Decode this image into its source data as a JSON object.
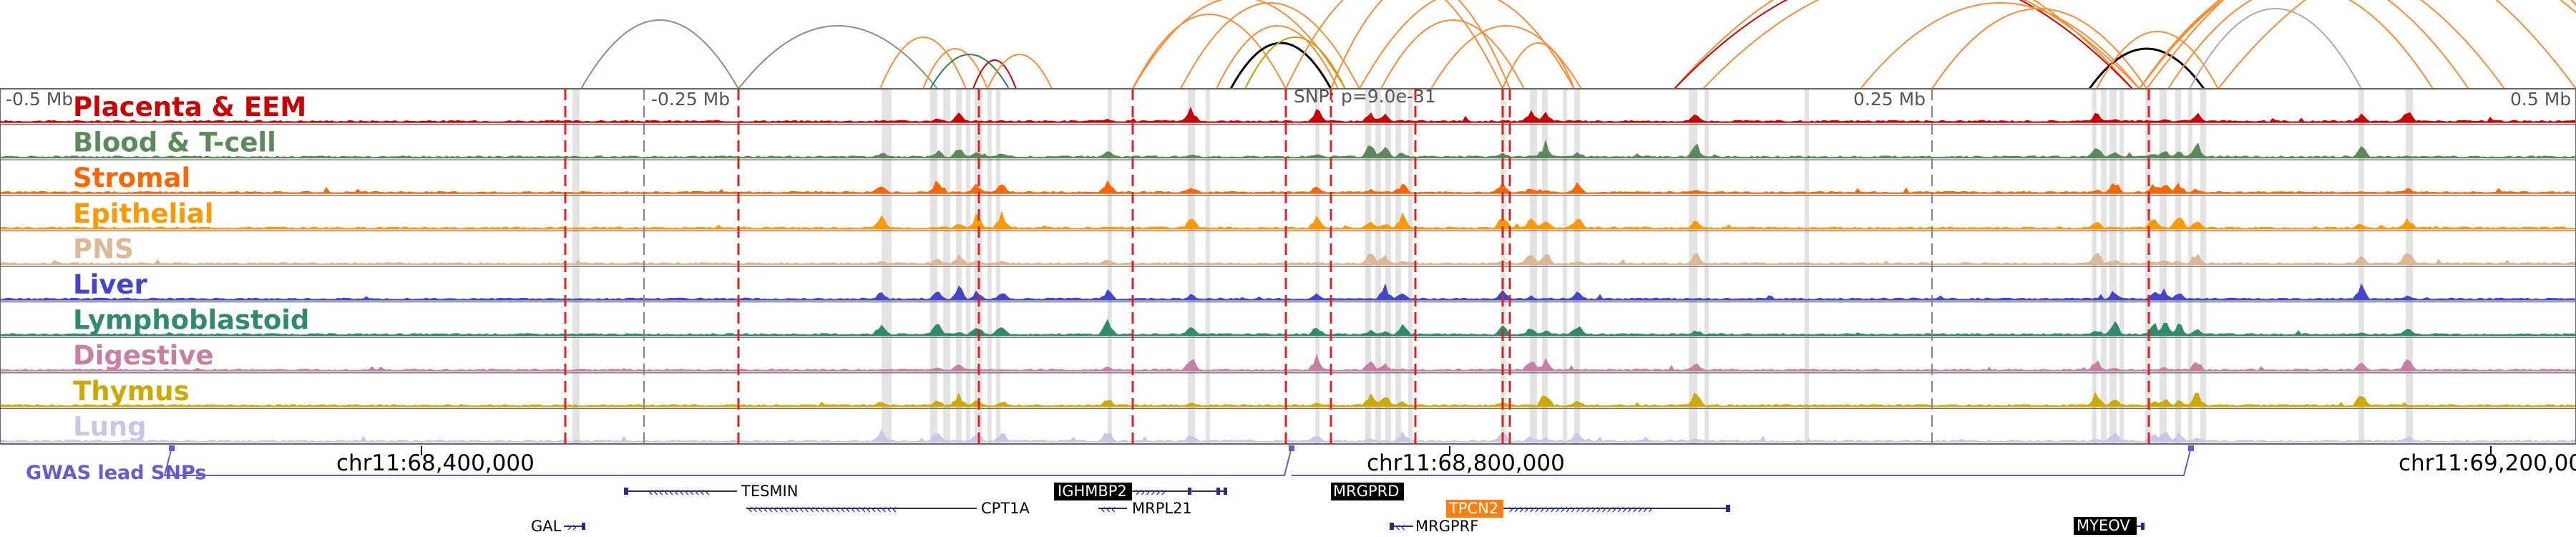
{
  "coordinates": {
    "top": [
      "-0.5 Mb",
      "-0.25 Mb",
      "SNP: p=9.0e-31",
      "0.25 Mb",
      "0.5 Mb"
    ],
    "bottom": [
      "chr11:68,400,000",
      "chr11:68,800,000",
      "chr11:69,200,000"
    ]
  },
  "tracks": [
    {
      "label": "Placenta & EEM",
      "color": "#cc0000"
    },
    {
      "label": "Blood & T-cell",
      "color": "#5a8a5a"
    },
    {
      "label": "Stromal",
      "color": "#ff6600"
    },
    {
      "label": "Epithelial",
      "color": "#ff9900"
    },
    {
      "label": "PNS",
      "color": "#dcb896"
    },
    {
      "label": "Liver",
      "color": "#4444cc"
    },
    {
      "label": "Lymphoblastoid",
      "color": "#2e8b6e"
    },
    {
      "label": "Digestive",
      "color": "#c77fa3"
    },
    {
      "label": "Thymus",
      "color": "#ccaa00"
    },
    {
      "label": "Lung",
      "color": "#c8c8e6"
    }
  ],
  "gwas": {
    "label": "GWAS lead SNPs",
    "color": "#6a5acd"
  },
  "genes": [
    {
      "name": "TESMIN",
      "highlight": "none"
    },
    {
      "name": "IGHMBP2",
      "highlight": "black"
    },
    {
      "name": "MRGPRD",
      "highlight": "black"
    },
    {
      "name": "CPT1A",
      "highlight": "none"
    },
    {
      "name": "MRPL21",
      "highlight": "none"
    },
    {
      "name": "TPCN2",
      "highlight": "orange"
    },
    {
      "name": "GAL",
      "highlight": "none"
    },
    {
      "name": "MRGPRF",
      "highlight": "none"
    },
    {
      "name": "MYEOV",
      "highlight": "black"
    }
  ]
}
